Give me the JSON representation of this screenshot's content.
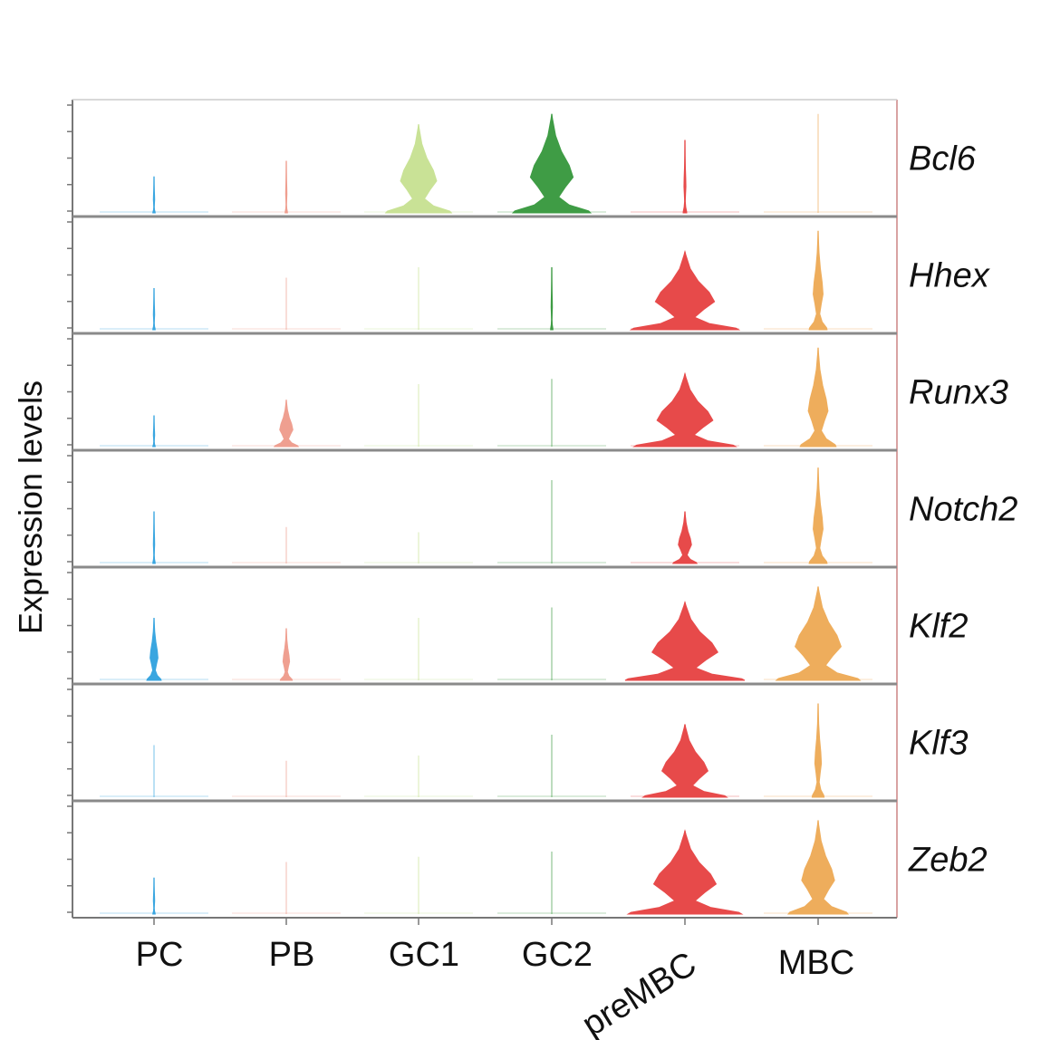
{
  "chart_data": {
    "type": "violin",
    "title": "",
    "ylabel": "Expression levels",
    "xlabel": "",
    "categories": [
      "PC",
      "PB",
      "GC1",
      "GC2",
      "preMBC",
      "MBC"
    ],
    "genes": [
      "Bcl6",
      "Hhex",
      "Runx3",
      "Notch2",
      "Klf2",
      "Klf3",
      "Zeb2"
    ],
    "category_colors": {
      "PC": "#3aa6e0",
      "PB": "#ef9f90",
      "GC1": "#c9e296",
      "GC2": "#3f9c45",
      "preMBC": "#e74a4a",
      "MBC": "#eead5c"
    },
    "relative_expression_height": {
      "Bcl6": [
        0.35,
        0.5,
        0.85,
        0.95,
        0.7,
        0.95
      ],
      "Hhex": [
        0.4,
        0.5,
        0.6,
        0.6,
        0.75,
        0.95
      ],
      "Runx3": [
        0.3,
        0.45,
        0.6,
        0.65,
        0.7,
        0.95
      ],
      "Notch2": [
        0.5,
        0.35,
        0.3,
        0.8,
        0.5,
        0.92
      ],
      "Klf2": [
        0.6,
        0.5,
        0.6,
        0.7,
        0.75,
        0.9
      ],
      "Klf3": [
        0.5,
        0.35,
        0.4,
        0.6,
        0.7,
        0.9
      ],
      "Zeb2": [
        0.35,
        0.5,
        0.55,
        0.6,
        0.8,
        0.9
      ]
    },
    "relative_width": {
      "Bcl6": [
        0.02,
        0.02,
        0.55,
        0.65,
        0.03,
        0.0
      ],
      "Hhex": [
        0.02,
        0.01,
        0.0,
        0.02,
        0.9,
        0.15
      ],
      "Runx3": [
        0.02,
        0.2,
        0.0,
        0.01,
        0.85,
        0.3
      ],
      "Notch2": [
        0.02,
        0.0,
        0.0,
        0.01,
        0.2,
        0.15
      ],
      "Klf2": [
        0.12,
        0.1,
        0.0,
        0.01,
        1.0,
        0.7
      ],
      "Klf3": [
        0.01,
        0.01,
        0.0,
        0.01,
        0.7,
        0.1
      ],
      "Zeb2": [
        0.02,
        0.01,
        0.0,
        0.01,
        0.95,
        0.5
      ]
    }
  }
}
